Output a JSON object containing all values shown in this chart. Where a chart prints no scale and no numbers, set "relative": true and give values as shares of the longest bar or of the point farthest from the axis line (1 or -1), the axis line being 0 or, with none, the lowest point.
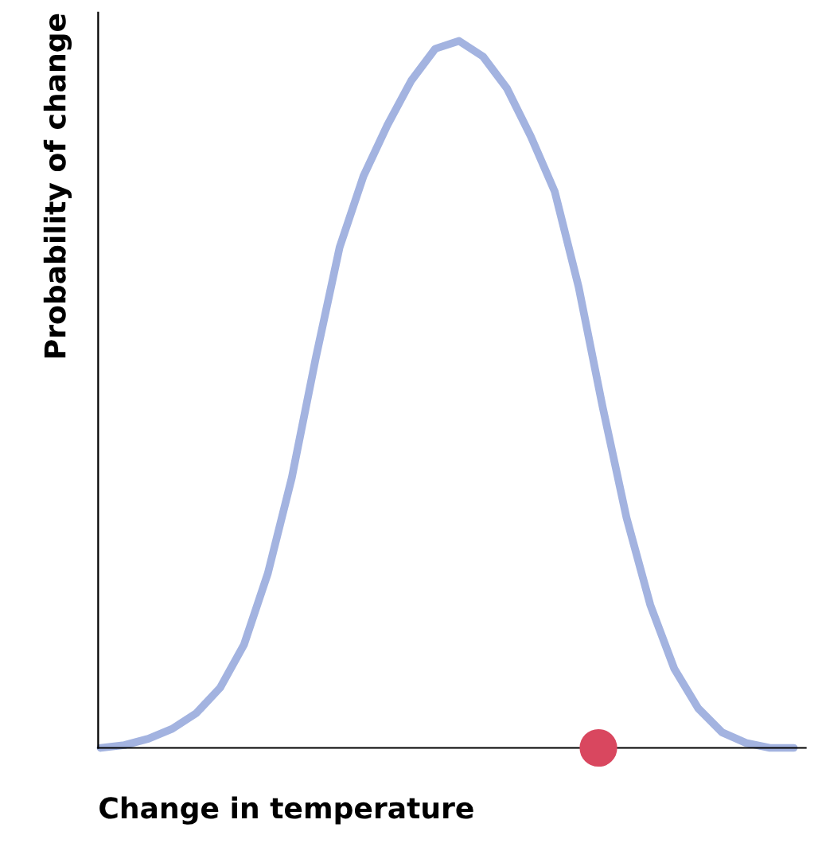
{
  "chart_data": {
    "type": "line",
    "relative": true,
    "xlabel": "Change in temperature",
    "ylabel": "Probability of change",
    "categories": [
      null,
      null,
      null,
      null,
      null,
      null,
      null,
      null,
      null,
      null,
      null,
      null,
      null,
      null,
      null,
      null,
      null,
      null,
      null,
      null,
      null,
      null,
      null,
      null,
      null,
      null,
      null,
      null,
      null,
      null
    ],
    "series": [
      {
        "color": "#a3b3e0",
        "marker": "none",
        "line_style": "solid",
        "values": [
          0,
          0.004,
          0.013,
          0.027,
          0.049,
          0.085,
          0.146,
          0.247,
          0.382,
          0.551,
          0.708,
          0.809,
          0.881,
          0.944,
          0.989,
          1,
          0.978,
          0.933,
          0.865,
          0.787,
          0.652,
          0.483,
          0.326,
          0.202,
          0.112,
          0.056,
          0.022,
          0.007,
          0,
          0
        ]
      }
    ],
    "grid": false,
    "legend": false,
    "tick_labels": false
  }
}
